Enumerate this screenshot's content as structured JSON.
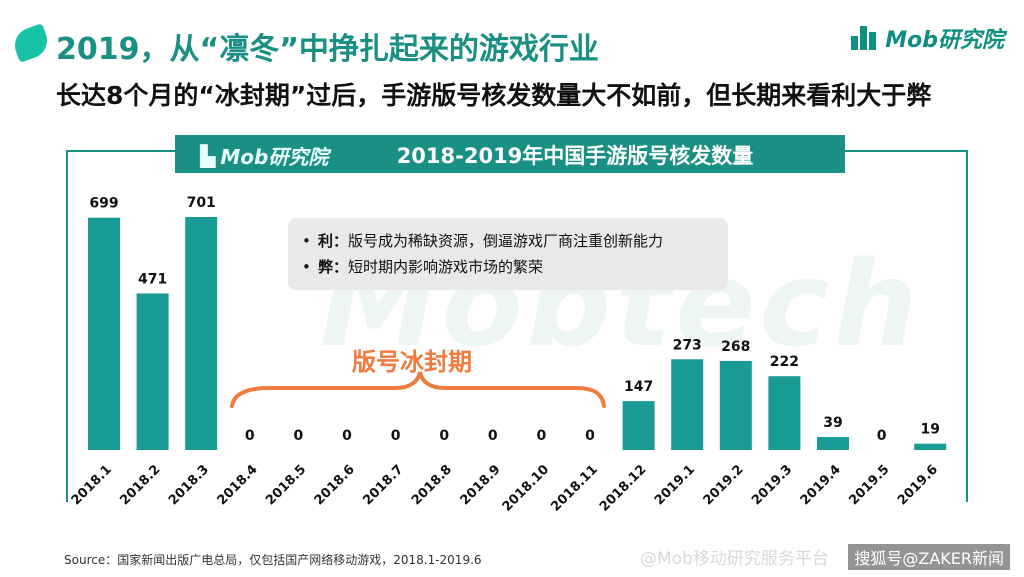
{
  "header": {
    "title": "2019，从“凛冬”中挣扎起来的游戏行业",
    "subtitle": "长达8个月的“冰封期”过后，手游版号核发数量大不如前，但长期来看利大于弊",
    "brand": "Mob研究院"
  },
  "panel": {
    "logo_text": "Mob研究院",
    "watermark": "Mobtech"
  },
  "callout": {
    "items": [
      {
        "label": "利：",
        "text": "版号成为稀缺资源，倒逼游戏厂商注重创新能力"
      },
      {
        "label": "弊：",
        "text": "短时期内影响游戏市场的繁荣"
      }
    ]
  },
  "annotation": "版号冰封期",
  "footer": {
    "source": "Source：国家新闻出版广电总局，仅包括国产网络移动游戏，2018.1-2019.6",
    "watermark_left": "@Mob移动研究服务平台",
    "watermark_right": "搜狐号@ZAKER新闻"
  },
  "colors": {
    "bar": "#1a9a94",
    "accent": "#1a8f83",
    "bracket": "#f07b3f"
  },
  "chart_data": {
    "type": "bar",
    "title": "2018-2019年中国手游版号核发数量",
    "categories": [
      "2018.1",
      "2018.2",
      "2018.3",
      "2018.4",
      "2018.5",
      "2018.6",
      "2018.7",
      "2018.8",
      "2018.9",
      "2018.10",
      "2018.11",
      "2018.12",
      "2019.1",
      "2019.2",
      "2019.3",
      "2019.4",
      "2019.5",
      "2019.6"
    ],
    "values": [
      699,
      471,
      701,
      0,
      0,
      0,
      0,
      0,
      0,
      0,
      0,
      147,
      273,
      268,
      222,
      39,
      0,
      19
    ],
    "ylim": [
      0,
      701
    ],
    "grid": false,
    "legend": false
  }
}
